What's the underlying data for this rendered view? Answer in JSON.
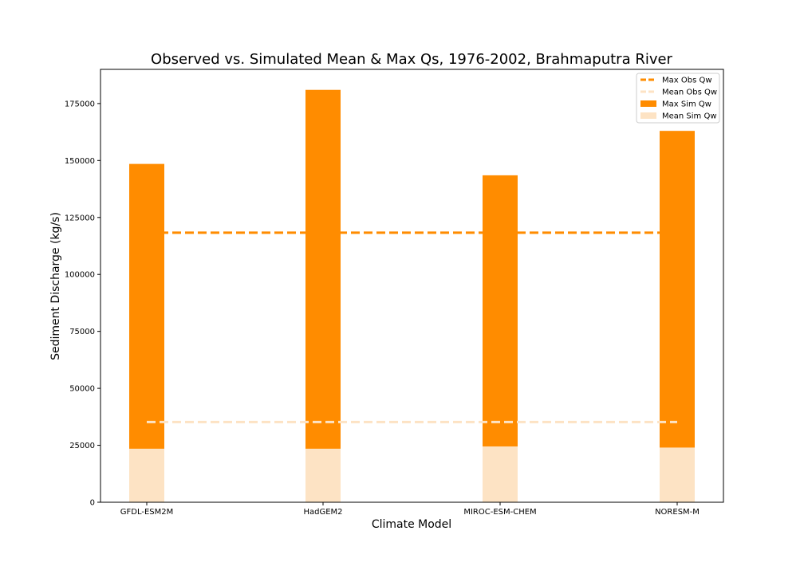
{
  "chart_data": {
    "type": "bar",
    "title": "Observed vs. Simulated Mean & Max Qs, 1976-2002, Brahmaputra River",
    "xlabel": "Climate Model",
    "ylabel": "Sediment Discharge (kg/s)",
    "categories": [
      "GFDL-ESM2M",
      "HadGEM2",
      "MIROC-ESM-CHEM",
      "NORESM-M"
    ],
    "series": [
      {
        "name": "Max Sim Qw",
        "values": [
          148500,
          181000,
          143500,
          163000
        ],
        "color": "#ff8c00"
      },
      {
        "name": "Mean Sim Qw",
        "values": [
          23500,
          23500,
          24500,
          24000
        ],
        "color": "#fde3c4"
      }
    ],
    "reference_lines": [
      {
        "name": "Max Obs Qw",
        "value": 118300,
        "color": "#ff8c00",
        "style": "dashed"
      },
      {
        "name": "Mean Obs Qw",
        "value": 35200,
        "color": "#fde3c4",
        "style": "dashed"
      }
    ],
    "ylim": [
      0,
      190000
    ],
    "yticks": [
      0,
      25000,
      50000,
      75000,
      100000,
      125000,
      150000,
      175000
    ],
    "ytick_labels": [
      "0",
      "25000",
      "50000",
      "75000",
      "100000",
      "125000",
      "150000",
      "175000"
    ],
    "grid": false,
    "legend": {
      "position": "top-right",
      "entries": [
        "Max Obs Qw",
        "Mean Obs Qw",
        "Max Sim Qw",
        "Mean Sim Qw"
      ]
    }
  }
}
